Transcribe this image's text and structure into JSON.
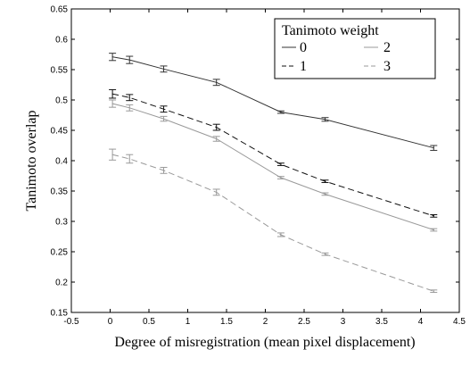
{
  "chart_data": {
    "type": "line",
    "xlabel": "Degree of misregistration (mean pixel displacement)",
    "ylabel": "Tanimoto overlap",
    "xlim": [
      -0.5,
      4.5
    ],
    "ylim": [
      0.15,
      0.65
    ],
    "xticks": [
      -0.5,
      0,
      0.5,
      1,
      1.5,
      2,
      2.5,
      3,
      3.5,
      4,
      4.5
    ],
    "yticks": [
      0.15,
      0.2,
      0.25,
      0.3,
      0.35,
      0.4,
      0.45,
      0.5,
      0.55,
      0.6,
      0.65
    ],
    "grid": false,
    "legend": {
      "title": "Tanimoto weight",
      "placement": "top-right"
    },
    "series": [
      {
        "name": "0",
        "color": "#333333",
        "dash": "solid",
        "x": [
          0.03,
          0.25,
          0.69,
          1.37,
          2.2,
          2.77,
          4.17
        ],
        "y": [
          0.571,
          0.566,
          0.551,
          0.529,
          0.48,
          0.468,
          0.421
        ],
        "err": [
          0.006,
          0.006,
          0.005,
          0.005,
          0.002,
          0.003,
          0.004
        ]
      },
      {
        "name": "1",
        "color": "#111111",
        "dash": "dashed",
        "x": [
          0.03,
          0.25,
          0.69,
          1.37,
          2.2,
          2.77,
          4.17
        ],
        "y": [
          0.51,
          0.504,
          0.485,
          0.455,
          0.394,
          0.366,
          0.309
        ],
        "err": [
          0.007,
          0.005,
          0.005,
          0.005,
          0.002,
          0.002,
          0.002
        ]
      },
      {
        "name": "2",
        "color": "#9a9a9a",
        "dash": "solid",
        "x": [
          0.03,
          0.25,
          0.69,
          1.37,
          2.2,
          2.77,
          4.17
        ],
        "y": [
          0.494,
          0.487,
          0.469,
          0.436,
          0.372,
          0.345,
          0.286
        ],
        "err": [
          0.006,
          0.005,
          0.004,
          0.004,
          0.002,
          0.002,
          0.002
        ]
      },
      {
        "name": "3",
        "color": "#9a9a9a",
        "dash": "dashed",
        "x": [
          0.03,
          0.25,
          0.69,
          1.37,
          2.2,
          2.77,
          4.17
        ],
        "y": [
          0.41,
          0.403,
          0.384,
          0.348,
          0.278,
          0.246,
          0.185
        ],
        "err": [
          0.009,
          0.007,
          0.005,
          0.005,
          0.003,
          0.002,
          0.002
        ]
      }
    ]
  }
}
